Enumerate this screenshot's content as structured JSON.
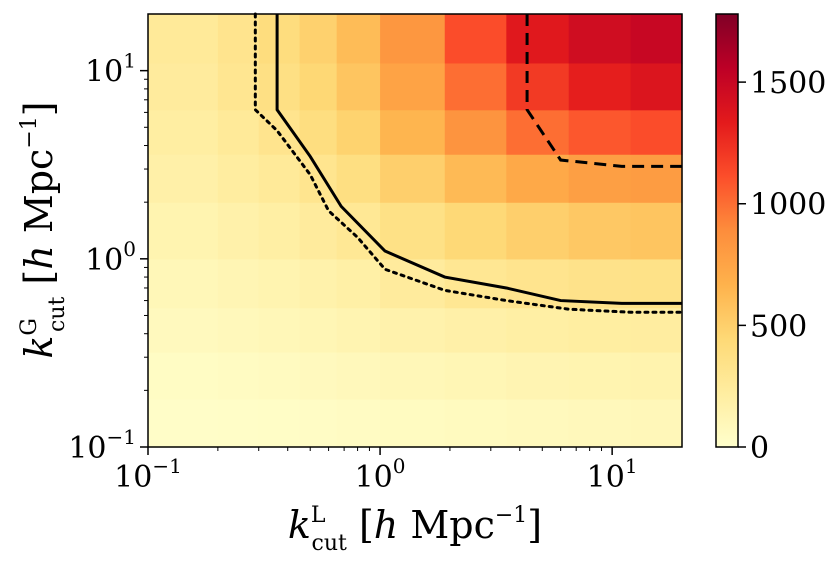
{
  "chart_data": {
    "type": "heatmap",
    "title": "",
    "xlabel": "k_cut^L [h Mpc^-1]",
    "ylabel": "k_cut^G [h Mpc^-1]",
    "xlabel_parts": {
      "sym": "k",
      "sup": "L",
      "sub": "cut",
      "rest": " [",
      "h": "h",
      "unit": " Mpc",
      "exp": "−1",
      "close": "]"
    },
    "ylabel_parts": {
      "sym": "k",
      "sup": "G",
      "sub": "cut",
      "rest": " [",
      "h": "h",
      "unit": " Mpc",
      "exp": "−1",
      "close": "]"
    },
    "x_scale": "log",
    "y_scale": "log",
    "xlim": [
      0.1,
      20
    ],
    "ylim": [
      0.1,
      20
    ],
    "x_ticks": [
      {
        "value": 0.1,
        "base": "10",
        "exp": "−1"
      },
      {
        "value": 1,
        "base": "10",
        "exp": "0"
      },
      {
        "value": 10,
        "base": "10",
        "exp": "1"
      }
    ],
    "y_ticks": [
      {
        "value": 0.1,
        "base": "10",
        "exp": "−1"
      },
      {
        "value": 1,
        "base": "10",
        "exp": "0"
      },
      {
        "value": 10,
        "base": "10",
        "exp": "1"
      }
    ],
    "x_bin_edges": [
      0.1,
      0.2,
      0.3,
      0.45,
      0.65,
      1.0,
      1.9,
      3.5,
      6.5,
      12.0,
      20.0
    ],
    "y_bin_edges": [
      0.1,
      0.18,
      0.32,
      0.55,
      1.0,
      2.0,
      3.6,
      6.2,
      11.0,
      20.0
    ],
    "z_values": [
      [
        20,
        25,
        30,
        35,
        45,
        55,
        65,
        75,
        85,
        95
      ],
      [
        40,
        50,
        60,
        70,
        85,
        100,
        115,
        130,
        140,
        150
      ],
      [
        70,
        85,
        100,
        115,
        135,
        160,
        180,
        200,
        215,
        225
      ],
      [
        100,
        120,
        140,
        165,
        190,
        240,
        290,
        320,
        340,
        350
      ],
      [
        140,
        170,
        200,
        240,
        280,
        360,
        440,
        500,
        540,
        560
      ],
      [
        180,
        220,
        260,
        310,
        380,
        500,
        620,
        720,
        780,
        800
      ],
      [
        210,
        260,
        320,
        390,
        480,
        650,
        850,
        1000,
        1080,
        1120
      ],
      [
        240,
        300,
        370,
        450,
        560,
        760,
        1000,
        1200,
        1320,
        1380
      ],
      [
        260,
        320,
        400,
        490,
        610,
        830,
        1120,
        1350,
        1450,
        1500
      ]
    ],
    "colorbar": {
      "colormap": "YlOrRd",
      "range": [
        0,
        1780
      ],
      "ticks": [
        0,
        500,
        1000,
        1500
      ],
      "tick_labels": [
        "0",
        "500",
        "1000",
        "1500"
      ]
    },
    "contours": [
      {
        "style": "dotted",
        "points": [
          [
            0.29,
            20
          ],
          [
            0.29,
            6.2
          ],
          [
            0.36,
            4.8
          ],
          [
            0.5,
            2.8
          ],
          [
            0.6,
            1.8
          ],
          [
            0.8,
            1.3
          ],
          [
            1.05,
            0.88
          ],
          [
            1.9,
            0.68
          ],
          [
            3.5,
            0.6
          ],
          [
            6.5,
            0.54
          ],
          [
            12,
            0.52
          ],
          [
            20,
            0.52
          ]
        ]
      },
      {
        "style": "solid",
        "points": [
          [
            0.36,
            20
          ],
          [
            0.36,
            6.2
          ],
          [
            0.5,
            3.5
          ],
          [
            0.68,
            1.9
          ],
          [
            1.05,
            1.1
          ],
          [
            1.9,
            0.8
          ],
          [
            3.5,
            0.7
          ],
          [
            6.0,
            0.6
          ],
          [
            11,
            0.58
          ],
          [
            20,
            0.58
          ]
        ]
      },
      {
        "style": "dashed",
        "points": [
          [
            4.3,
            20
          ],
          [
            4.3,
            6.2
          ],
          [
            6.0,
            3.35
          ],
          [
            11,
            3.1
          ],
          [
            20,
            3.1
          ]
        ]
      }
    ]
  }
}
